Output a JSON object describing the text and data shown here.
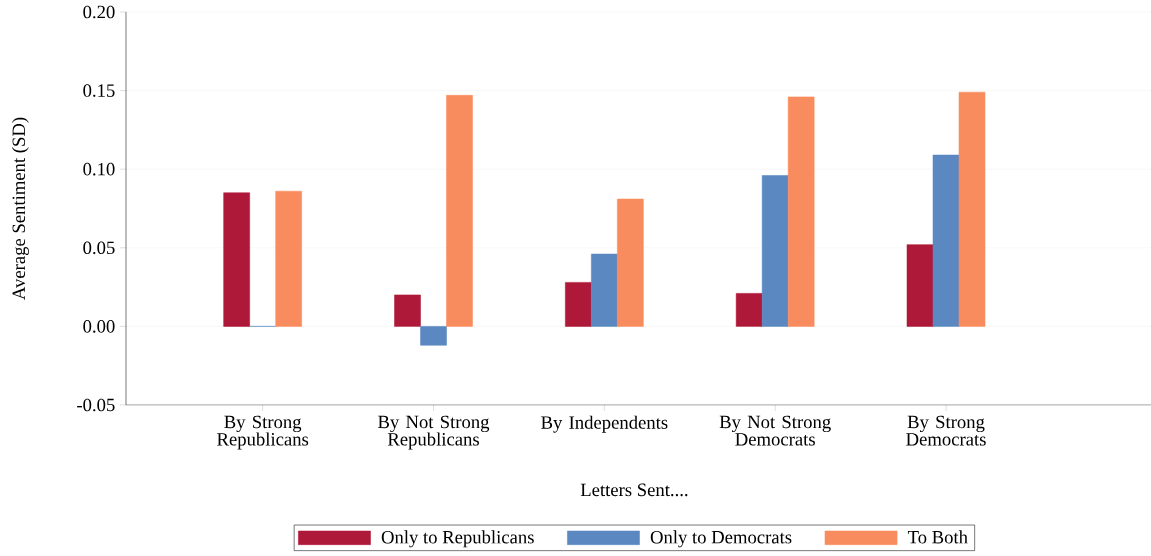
{
  "chart_data": {
    "type": "bar",
    "xlabel": "Letters Sent....",
    "ylabel": "Average Sentiment (SD)",
    "categories": [
      "By Strong Republicans",
      "By Not Strong Republicans",
      "By Independents",
      "By Not Strong Democrats",
      "By Strong Democrats"
    ],
    "series": [
      {
        "name": "Only to Republicans",
        "color": "#ae1839",
        "values": [
          0.085,
          0.02,
          0.028,
          0.021,
          0.052
        ]
      },
      {
        "name": "Only to Democrats",
        "color": "#5b88c0",
        "values": [
          0.0,
          -0.012,
          0.046,
          0.096,
          0.109
        ]
      },
      {
        "name": "To Both",
        "color": "#f98c5e",
        "values": [
          0.086,
          0.147,
          0.081,
          0.146,
          0.149
        ]
      }
    ],
    "ylim": [
      -0.05,
      0.2
    ],
    "yticks": [
      {
        "value": -0.05,
        "label": "-0.05"
      },
      {
        "value": 0,
        "label": "0.00"
      },
      {
        "value": 0.05,
        "label": "0.05"
      },
      {
        "value": 0.1,
        "label": "0.10"
      },
      {
        "value": 0.15,
        "label": "0.15"
      },
      {
        "value": 0.2,
        "label": "0.20"
      }
    ],
    "grid": "y",
    "legend": "bottom"
  }
}
